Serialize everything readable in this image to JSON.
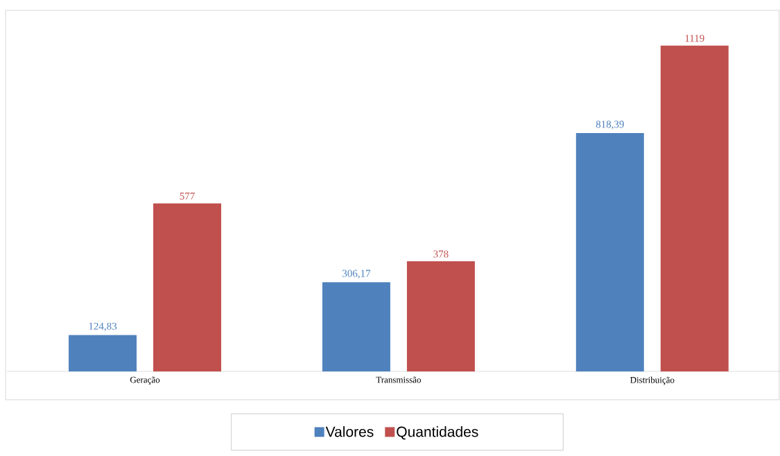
{
  "chart_data": {
    "type": "bar",
    "categories": [
      "Geração",
      "Transmissão",
      "Distribuição"
    ],
    "series": [
      {
        "name": "Valores",
        "color": "#4f81bd",
        "values": [
          124.83,
          306.17,
          818.39
        ],
        "value_labels": [
          "124,83",
          "306,17",
          "818,39"
        ]
      },
      {
        "name": "Quantidades",
        "color": "#c0504d",
        "values": [
          577,
          378,
          1119
        ],
        "value_labels": [
          "577",
          "378",
          "1119"
        ]
      }
    ],
    "ylim": [
      0,
      1240
    ],
    "legend": "bottom"
  }
}
